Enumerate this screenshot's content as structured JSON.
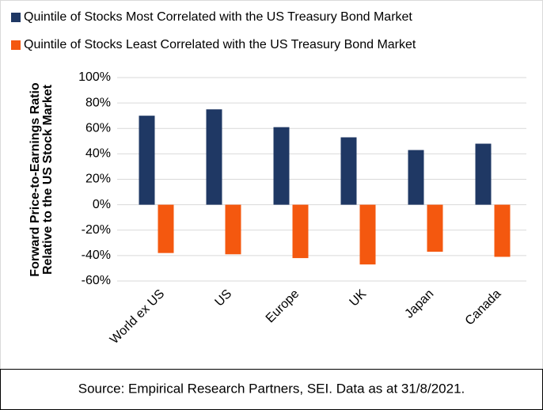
{
  "chart_data": {
    "type": "bar",
    "ylabel": [
      "Forward Price-to-Earnings Ratio",
      "Relative to the US Stock Market"
    ],
    "categories": [
      "World ex US",
      "US",
      "Europe",
      "UK",
      "Japan",
      "Canada"
    ],
    "series": [
      {
        "name": "Quintile of Stocks Most Correlated with the US Treasury Bond Market",
        "color": "#1f3864",
        "values": [
          70,
          75,
          61,
          53,
          43,
          48
        ]
      },
      {
        "name": "Quintile of Stocks Least Correlated with the US Treasury Bond Market",
        "color": "#f4580f",
        "values": [
          -38,
          -39,
          -42,
          -47,
          -37,
          -41
        ]
      }
    ],
    "ylim": [
      -60,
      100
    ],
    "yticks": [
      {
        "value": -60,
        "label": "-60%"
      },
      {
        "value": -40,
        "label": "-40%"
      },
      {
        "value": -20,
        "label": "-20%"
      },
      {
        "value": 0,
        "label": "0%"
      },
      {
        "value": 20,
        "label": "20%"
      },
      {
        "value": 40,
        "label": "40%"
      },
      {
        "value": 60,
        "label": "60%"
      },
      {
        "value": 80,
        "label": "80%"
      },
      {
        "value": 100,
        "label": "100%"
      }
    ],
    "grid": true,
    "source": "Source: Empirical Research Partners, SEI. Data as at 31/8/2021."
  }
}
